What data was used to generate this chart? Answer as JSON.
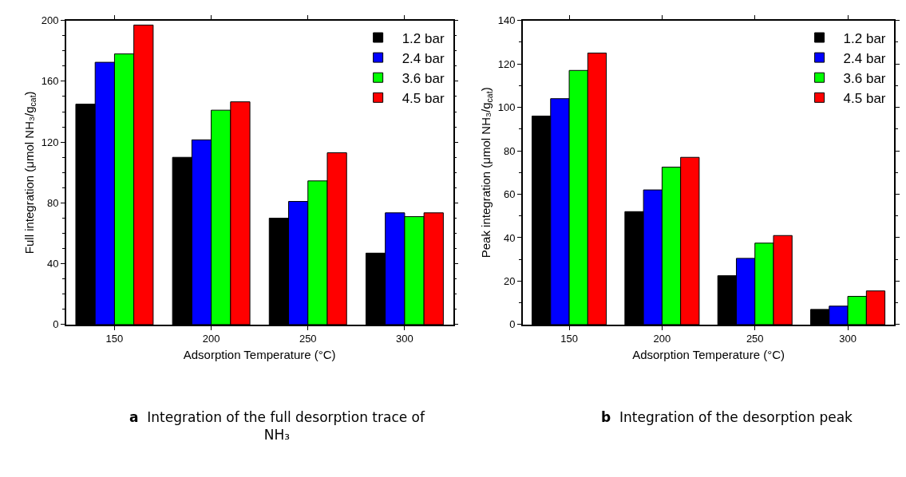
{
  "chart_data": [
    {
      "type": "bar",
      "xlabel": "Adsorption Temperature (°C)",
      "ylabel": "Full integration (μmol NH₃/g$_{cat}$)",
      "categories": [
        "150",
        "200",
        "250",
        "300"
      ],
      "ylim": [
        0,
        200
      ],
      "yticks": [
        0,
        40,
        80,
        120,
        160,
        200
      ],
      "legend": "top right",
      "series": [
        {
          "name": "1.2 bar",
          "color": "#000000",
          "values": [
            145,
            110,
            70,
            47
          ]
        },
        {
          "name": "2.4 bar",
          "color": "#0000ff",
          "values": [
            172.5,
            121.5,
            81,
            73.5
          ]
        },
        {
          "name": "3.6 bar",
          "color": "#00ff00",
          "values": [
            178,
            141,
            94.5,
            71
          ]
        },
        {
          "name": "4.5 bar",
          "color": "#ff0000",
          "values": [
            197,
            146.5,
            113,
            73.5
          ]
        }
      ],
      "annotations": [
        "a",
        "Integration of the full desorption trace of NH₃"
      ]
    },
    {
      "type": "bar",
      "xlabel": "Adsorption Temperature (°C)",
      "ylabel": "Peak integration (μmol NH₃/g$_{cat}$)",
      "categories": [
        "150",
        "200",
        "250",
        "300"
      ],
      "ylim": [
        0,
        140
      ],
      "yticks": [
        0,
        20,
        40,
        60,
        80,
        100,
        120,
        140
      ],
      "legend": "top right",
      "series": [
        {
          "name": "1.2 bar",
          "color": "#000000",
          "values": [
            96,
            52,
            22.5,
            7
          ]
        },
        {
          "name": "2.4 bar",
          "color": "#0000ff",
          "values": [
            104,
            62,
            30.5,
            8.5
          ]
        },
        {
          "name": "3.6 bar",
          "color": "#00ff00",
          "values": [
            117,
            72.5,
            37.5,
            13
          ]
        },
        {
          "name": "4.5 bar",
          "color": "#ff0000",
          "values": [
            125,
            77,
            41,
            15.5
          ]
        }
      ],
      "annotations": [
        "b",
        "Integration of the desorption peak"
      ]
    }
  ]
}
